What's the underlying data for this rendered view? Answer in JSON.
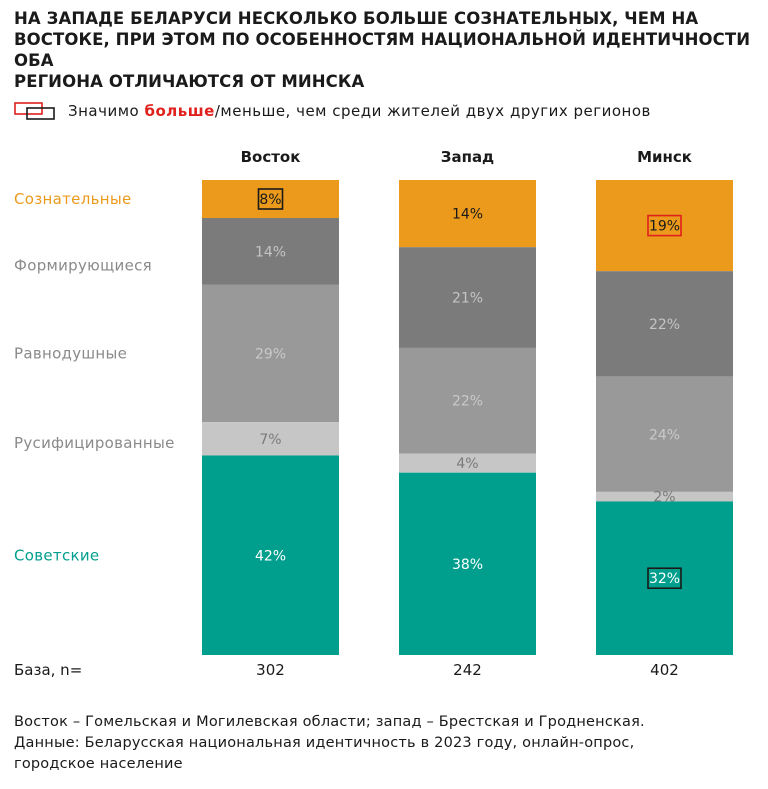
{
  "title_lines": [
    "НА ЗАПАДЕ БЕЛАРУСИ НЕСКОЛЬКО БОЛЬШЕ СОЗНАТЕЛЬНЫХ, ЧЕМ НА",
    "ВОСТОКЕ, ПРИ ЭТОМ ПО ОСОБЕННОСТЯМ НАЦИОНАЛЬНОЙ ИДЕНТИЧНОСТИ ОБА",
    "РЕГИОНА ОТЛИЧАЮТСЯ ОТ МИНСКА"
  ],
  "legend": {
    "prefix": "Значимо ",
    "more": "больше",
    "rest": "/меньше, чем среди жителей двух других регионов",
    "more_color": "#e0211e",
    "less_color": "#1a1a1a"
  },
  "chart_data": {
    "type": "bar",
    "stacked": true,
    "unit": "%",
    "categories": [
      "Восток",
      "Запад",
      "Минск"
    ],
    "series": [
      {
        "name": "Сознательные",
        "color": "#eb9a1b",
        "label_color": "#eb9a1b",
        "text_color": "#1a1a1a",
        "values": [
          8,
          14,
          19
        ]
      },
      {
        "name": "Формирующиеся",
        "color": "#7b7b7b",
        "label_color": "#8a8a8a",
        "text_color": "#c4c4c4",
        "values": [
          14,
          21,
          22
        ]
      },
      {
        "name": "Равнодушные",
        "color": "#999999",
        "label_color": "#8a8a8a",
        "text_color": "#c9c9c9",
        "values": [
          29,
          22,
          24
        ]
      },
      {
        "name": "Русифицированные",
        "color": "#c6c6c6",
        "label_color": "#8a8a8a",
        "text_color": "#7a7a7a",
        "values": [
          7,
          4,
          2
        ]
      },
      {
        "name": "Советские",
        "color": "#009e8d",
        "label_color": "#009e8d",
        "text_color": "#ffffff",
        "values": [
          42,
          38,
          32
        ]
      }
    ],
    "highlights": [
      {
        "series": "Сознательные",
        "category": "Восток",
        "type": "less"
      },
      {
        "series": "Сознательные",
        "category": "Минск",
        "type": "more"
      },
      {
        "series": "Советские",
        "category": "Минск",
        "type": "less"
      }
    ],
    "base": {
      "label": "База, n=",
      "values": [
        302,
        242,
        402
      ]
    }
  },
  "footnote_lines": [
    "Восток – Гомельская и Могилевская области; запад – Брестская и Гродненская.",
    "Данные: Беларусская национальная идентичность в 2023 году, онлайн-опрос,",
    "городское население"
  ]
}
